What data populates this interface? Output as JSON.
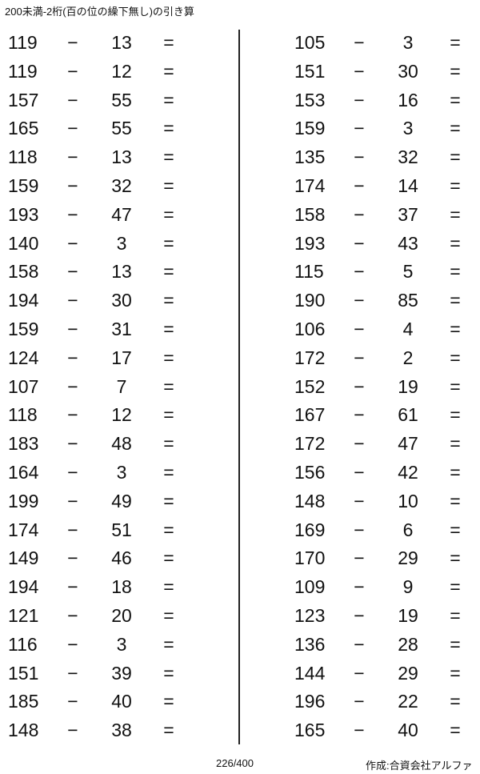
{
  "title": "200未満-2桁(百の位の繰下無し)の引き算",
  "operator": "−",
  "equals": "=",
  "left_problems": [
    {
      "a": "119",
      "b": "13"
    },
    {
      "a": "119",
      "b": "12"
    },
    {
      "a": "157",
      "b": "55"
    },
    {
      "a": "165",
      "b": "55"
    },
    {
      "a": "118",
      "b": "13"
    },
    {
      "a": "159",
      "b": "32"
    },
    {
      "a": "193",
      "b": "47"
    },
    {
      "a": "140",
      "b": "3"
    },
    {
      "a": "158",
      "b": "13"
    },
    {
      "a": "194",
      "b": "30"
    },
    {
      "a": "159",
      "b": "31"
    },
    {
      "a": "124",
      "b": "17"
    },
    {
      "a": "107",
      "b": "7"
    },
    {
      "a": "118",
      "b": "12"
    },
    {
      "a": "183",
      "b": "48"
    },
    {
      "a": "164",
      "b": "3"
    },
    {
      "a": "199",
      "b": "49"
    },
    {
      "a": "174",
      "b": "51"
    },
    {
      "a": "149",
      "b": "46"
    },
    {
      "a": "194",
      "b": "18"
    },
    {
      "a": "121",
      "b": "20"
    },
    {
      "a": "116",
      "b": "3"
    },
    {
      "a": "151",
      "b": "39"
    },
    {
      "a": "185",
      "b": "40"
    },
    {
      "a": "148",
      "b": "38"
    }
  ],
  "right_problems": [
    {
      "a": "105",
      "b": "3"
    },
    {
      "a": "151",
      "b": "30"
    },
    {
      "a": "153",
      "b": "16"
    },
    {
      "a": "159",
      "b": "3"
    },
    {
      "a": "135",
      "b": "32"
    },
    {
      "a": "174",
      "b": "14"
    },
    {
      "a": "158",
      "b": "37"
    },
    {
      "a": "193",
      "b": "43"
    },
    {
      "a": "115",
      "b": "5"
    },
    {
      "a": "190",
      "b": "85"
    },
    {
      "a": "106",
      "b": "4"
    },
    {
      "a": "172",
      "b": "2"
    },
    {
      "a": "152",
      "b": "19"
    },
    {
      "a": "167",
      "b": "61"
    },
    {
      "a": "172",
      "b": "47"
    },
    {
      "a": "156",
      "b": "42"
    },
    {
      "a": "148",
      "b": "10"
    },
    {
      "a": "169",
      "b": "6"
    },
    {
      "a": "170",
      "b": "29"
    },
    {
      "a": "109",
      "b": "9"
    },
    {
      "a": "123",
      "b": "19"
    },
    {
      "a": "136",
      "b": "28"
    },
    {
      "a": "144",
      "b": "29"
    },
    {
      "a": "196",
      "b": "22"
    },
    {
      "a": "165",
      "b": "40"
    }
  ],
  "footer": {
    "page": "226/400",
    "credit": "作成:合資会社アルファ"
  }
}
